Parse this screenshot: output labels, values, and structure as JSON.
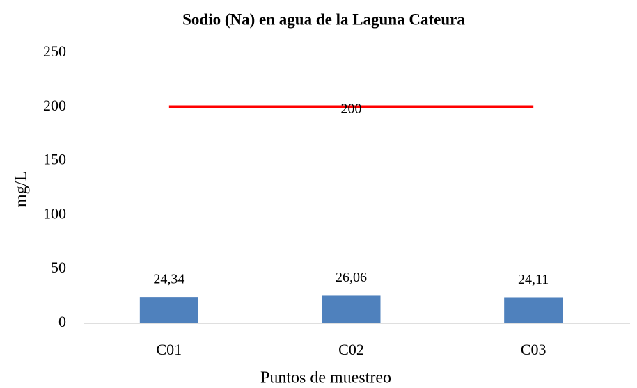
{
  "chart_data": {
    "type": "bar",
    "title": "Sodio (Na) en agua de la Laguna Cateura",
    "x_label": "Puntos de muestreo",
    "y_label": "mg/L",
    "categories": [
      "C01",
      "C02",
      "C03"
    ],
    "series": [
      {
        "type": "bar",
        "color": "#4f81bd",
        "values": [
          24.34,
          26.06,
          24.11
        ],
        "value_labels": [
          "24,34",
          "26,06",
          "24,11"
        ]
      },
      {
        "type": "line",
        "color": "#ff0000",
        "values": [
          200,
          200,
          200
        ],
        "value_labels": [
          null,
          "200",
          null
        ]
      }
    ],
    "ylim": [
      0,
      250
    ],
    "yticks": [
      0,
      50,
      100,
      150,
      200,
      250
    ],
    "grid": false
  }
}
